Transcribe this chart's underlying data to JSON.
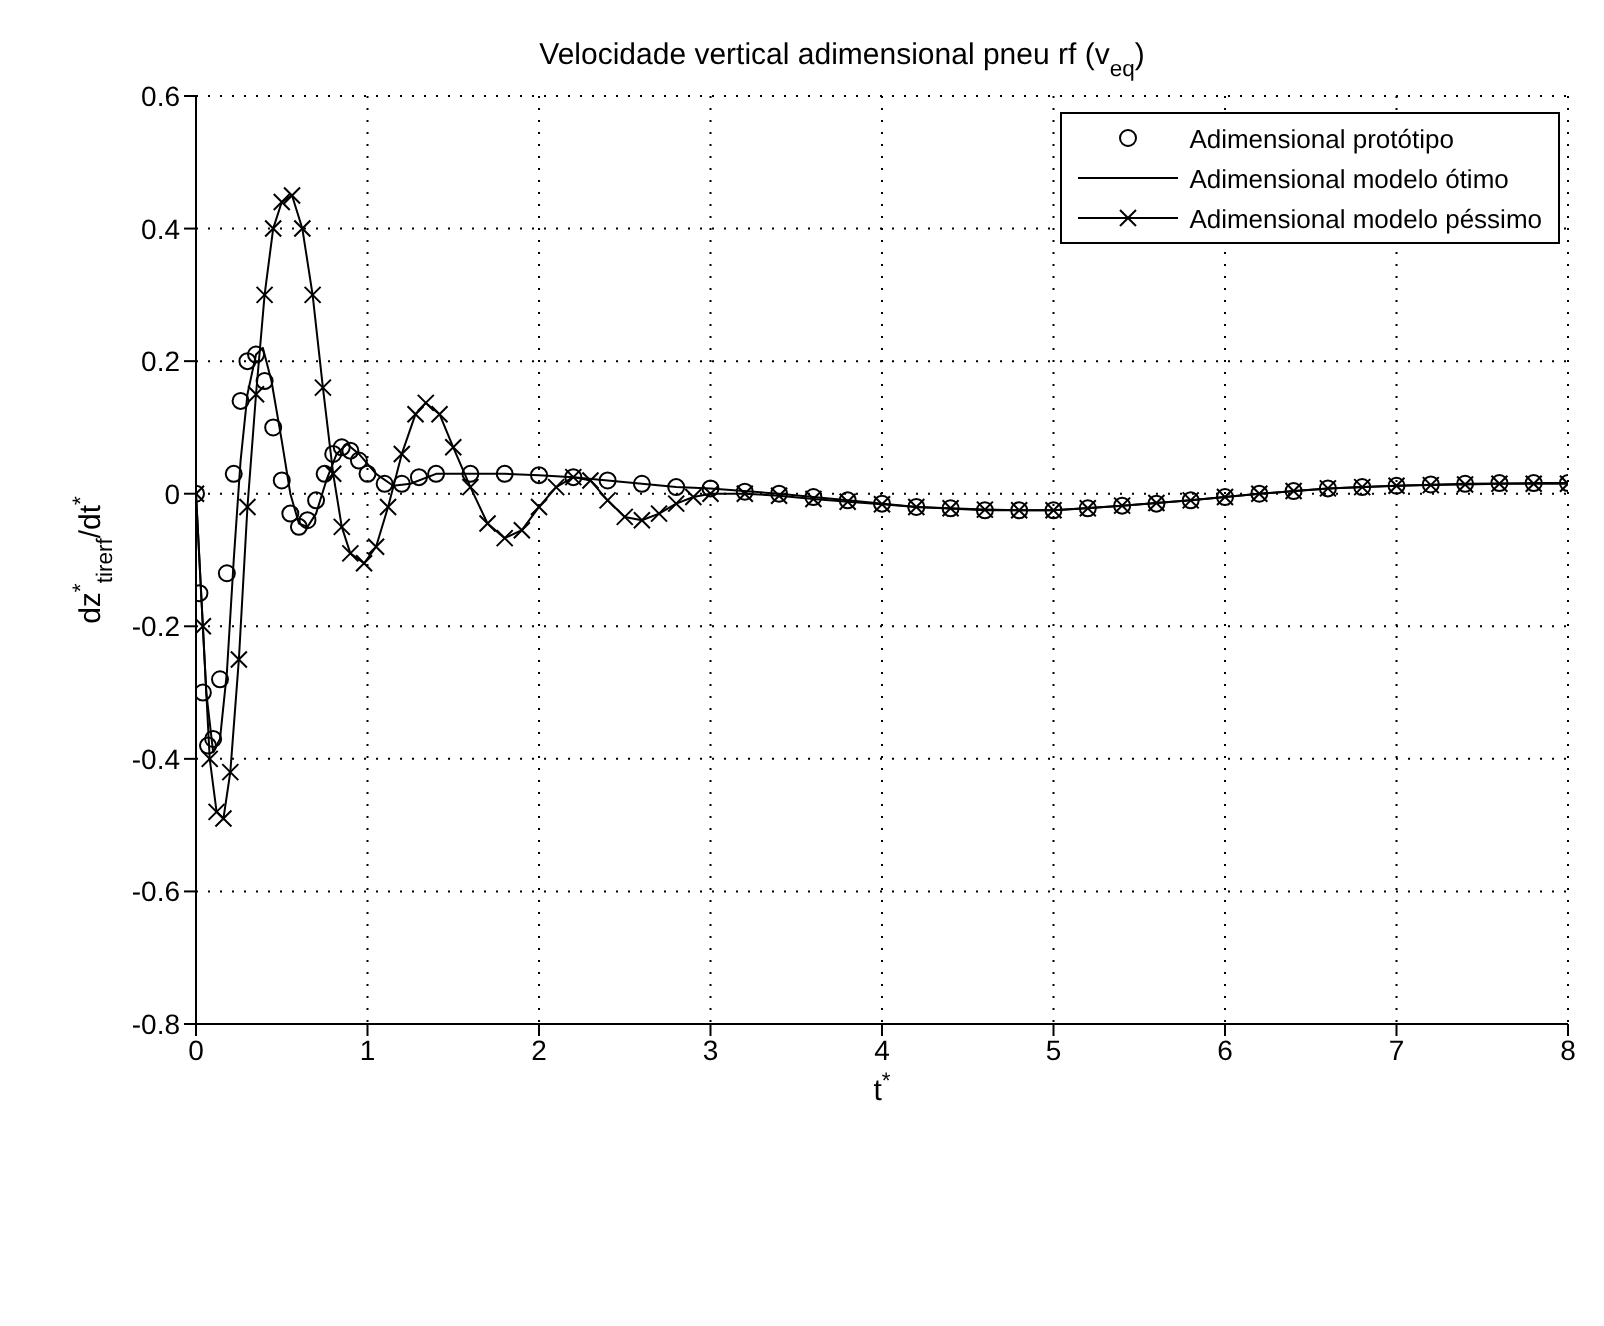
{
  "chart_data": {
    "type": "line",
    "title": "Velocidade vertical adimensional pneu rf (v$_{eq}$)",
    "xlabel": "t$^{*}$",
    "ylabel": "dz$^{*}$$_{tirerf}$/dt$^{*}$",
    "xlim": [
      0,
      8
    ],
    "xticks": [
      0,
      1,
      2,
      3,
      4,
      5,
      6,
      7,
      8
    ],
    "ylim": [
      -0.8,
      0.6
    ],
    "yticks": [
      -0.8,
      -0.6,
      -0.4,
      -0.2,
      0,
      0.2,
      0.4,
      0.6
    ],
    "grid": true,
    "legend": "top right",
    "series": [
      {
        "name": "Adimensional protótipo",
        "type": "scatter",
        "marker": "circle",
        "color": "#000000",
        "x": [
          0,
          0.02,
          0.04,
          0.07,
          0.1,
          0.14,
          0.18,
          0.22,
          0.26,
          0.3,
          0.35,
          0.4,
          0.45,
          0.5,
          0.55,
          0.6,
          0.65,
          0.7,
          0.75,
          0.8,
          0.85,
          0.9,
          0.95,
          1.0,
          1.1,
          1.2,
          1.3,
          1.4,
          1.6,
          1.8,
          2.0,
          2.2,
          2.4,
          2.6,
          2.8,
          3.0,
          3.2,
          3.4,
          3.6,
          3.8,
          4.0,
          4.2,
          4.4,
          4.6,
          4.8,
          5.0,
          5.2,
          5.4,
          5.6,
          5.8,
          6.0,
          6.2,
          6.4,
          6.6,
          6.8,
          7.0,
          7.2,
          7.4,
          7.6,
          7.8,
          8.0
        ],
        "values": [
          0,
          -0.15,
          -0.3,
          -0.38,
          -0.37,
          -0.28,
          -0.12,
          0.03,
          0.14,
          0.2,
          0.21,
          0.17,
          0.1,
          0.02,
          -0.03,
          -0.05,
          -0.04,
          -0.01,
          0.03,
          0.06,
          0.07,
          0.065,
          0.05,
          0.03,
          0.015,
          0.015,
          0.025,
          0.03,
          0.03,
          0.03,
          0.028,
          0.025,
          0.02,
          0.015,
          0.01,
          0.008,
          0.003,
          0,
          -0.005,
          -0.01,
          -0.015,
          -0.02,
          -0.022,
          -0.025,
          -0.025,
          -0.025,
          -0.022,
          -0.018,
          -0.015,
          -0.01,
          -0.005,
          0,
          0.004,
          0.008,
          0.01,
          0.012,
          0.014,
          0.015,
          0.016,
          0.016,
          0.016
        ]
      },
      {
        "name": "Adimensional modelo ótimo",
        "type": "line",
        "marker": "none",
        "line_style": "solid",
        "color": "#000000",
        "x": [
          0,
          0.03,
          0.06,
          0.1,
          0.14,
          0.18,
          0.22,
          0.26,
          0.3,
          0.35,
          0.39,
          0.44,
          0.5,
          0.55,
          0.6,
          0.65,
          0.7,
          0.76,
          0.82,
          0.88,
          0.95,
          1.05,
          1.15,
          1.25,
          1.4,
          1.6,
          1.8,
          2.0,
          2.2,
          2.4,
          2.6,
          2.8,
          3.0,
          3.4,
          3.8,
          4.2,
          4.6,
          5.0,
          5.4,
          5.8,
          6.2,
          6.6,
          7.0,
          7.4,
          7.8,
          8.0
        ],
        "values": [
          0,
          -0.15,
          -0.3,
          -0.39,
          -0.37,
          -0.27,
          -0.1,
          0.05,
          0.15,
          0.21,
          0.22,
          0.17,
          0.08,
          0,
          -0.045,
          -0.05,
          -0.03,
          0.02,
          0.06,
          0.075,
          0.06,
          0.03,
          0.012,
          0.015,
          0.03,
          0.03,
          0.03,
          0.028,
          0.025,
          0.02,
          0.015,
          0.01,
          0.008,
          0,
          -0.01,
          -0.02,
          -0.025,
          -0.025,
          -0.018,
          -0.01,
          0,
          0.008,
          0.012,
          0.015,
          0.016,
          0.016
        ]
      },
      {
        "name": "Adimensional modelo péssimo",
        "type": "line",
        "marker": "cross",
        "line_style": "solid",
        "color": "#000000",
        "x": [
          0,
          0.04,
          0.08,
          0.12,
          0.16,
          0.2,
          0.25,
          0.3,
          0.35,
          0.4,
          0.45,
          0.5,
          0.56,
          0.62,
          0.68,
          0.74,
          0.8,
          0.85,
          0.9,
          0.98,
          1.05,
          1.12,
          1.2,
          1.28,
          1.34,
          1.42,
          1.5,
          1.6,
          1.7,
          1.8,
          1.9,
          2.0,
          2.1,
          2.2,
          2.3,
          2.4,
          2.5,
          2.6,
          2.7,
          2.8,
          2.9,
          3.0,
          3.2,
          3.4,
          3.6,
          3.8,
          4.0,
          4.2,
          4.4,
          4.6,
          4.8,
          5.0,
          5.2,
          5.4,
          5.6,
          5.8,
          6.0,
          6.2,
          6.4,
          6.6,
          6.8,
          7.0,
          7.2,
          7.4,
          7.6,
          7.8,
          8.0
        ],
        "values": [
          0,
          -0.2,
          -0.4,
          -0.48,
          -0.49,
          -0.42,
          -0.25,
          -0.02,
          0.15,
          0.3,
          0.4,
          0.44,
          0.45,
          0.4,
          0.3,
          0.16,
          0.03,
          -0.05,
          -0.09,
          -0.105,
          -0.08,
          -0.02,
          0.06,
          0.12,
          0.137,
          0.12,
          0.07,
          0.01,
          -0.045,
          -0.067,
          -0.055,
          -0.02,
          0.01,
          0.025,
          0.02,
          -0.01,
          -0.035,
          -0.04,
          -0.03,
          -0.015,
          -0.005,
          0,
          0,
          -0.003,
          -0.008,
          -0.012,
          -0.016,
          -0.02,
          -0.022,
          -0.024,
          -0.025,
          -0.025,
          -0.022,
          -0.018,
          -0.014,
          -0.01,
          -0.005,
          0,
          0.004,
          0.008,
          0.01,
          0.012,
          0.013,
          0.014,
          0.015,
          0.015,
          0.015
        ]
      }
    ]
  }
}
